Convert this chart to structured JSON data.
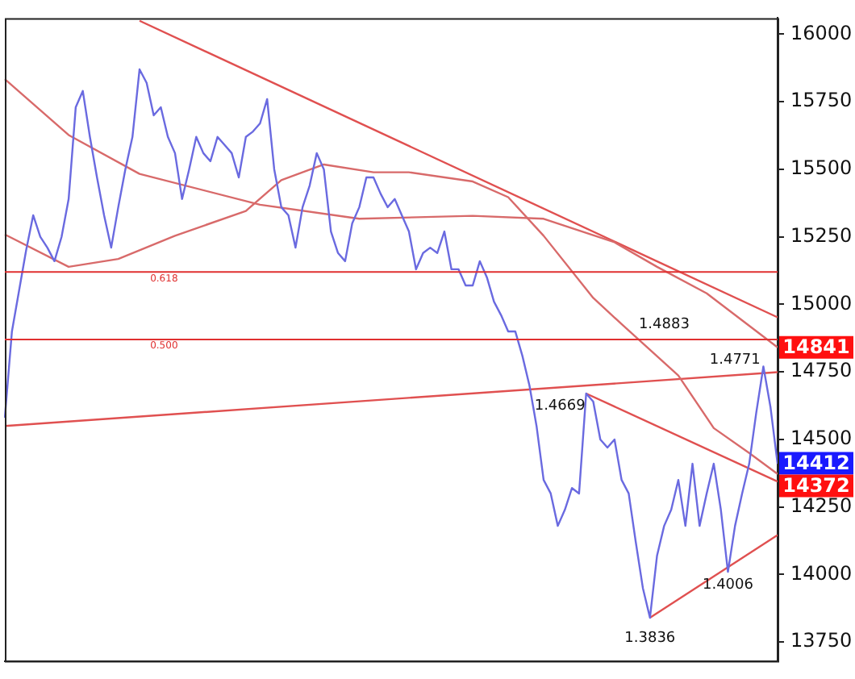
{
  "chart_data": {
    "type": "line",
    "categories": [
      null,
      null,
      null,
      null,
      null,
      null,
      null,
      null,
      null,
      null,
      null,
      null,
      null,
      null,
      null,
      null,
      null,
      null,
      null,
      null,
      null,
      null,
      null,
      null,
      null,
      null,
      null,
      null,
      null,
      null,
      null,
      null,
      null,
      null,
      null,
      null,
      null,
      null,
      null,
      null,
      null,
      null,
      null,
      null,
      null,
      null,
      null,
      null,
      null,
      null,
      null,
      null,
      null,
      null,
      null,
      null,
      null,
      null,
      null,
      null,
      null,
      null,
      null,
      null,
      null,
      null,
      null,
      null,
      null,
      null,
      null,
      null,
      null,
      null,
      null,
      null,
      null,
      null,
      null,
      null,
      null,
      null,
      null,
      null,
      null,
      null,
      null,
      null,
      null,
      null,
      null,
      null,
      null,
      null,
      null,
      null,
      null,
      null,
      null,
      null,
      null,
      null,
      null,
      null,
      null,
      null,
      null,
      null,
      null,
      null
    ],
    "series": [
      {
        "type": "line",
        "color": "#6a6ae0",
        "values": [
          14580,
          14900,
          15050,
          15200,
          15330,
          15250,
          15210,
          15160,
          15250,
          15390,
          15730,
          15790,
          15620,
          15470,
          15330,
          15210,
          15360,
          15500,
          15620,
          15870,
          15820,
          15700,
          15730,
          15620,
          15560,
          15390,
          15500,
          15620,
          15560,
          15530,
          15620,
          15590,
          15560,
          15470,
          15620,
          15640,
          15670,
          15760,
          15500,
          15360,
          15330,
          15210,
          15360,
          15440,
          15560,
          15500,
          15270,
          15190,
          15160,
          15300,
          15360,
          15470,
          15470,
          15410,
          15360,
          15390,
          15330,
          15270,
          15130,
          15190,
          15210,
          15190,
          15270,
          15130,
          15130,
          15070,
          15070,
          15160,
          15100,
          15010,
          14960,
          14900,
          14900,
          14810,
          14700,
          14550,
          14350,
          14300,
          14180,
          14240,
          14320,
          14300,
          14670,
          14640,
          14500,
          14470,
          14500,
          14350,
          14300,
          14120,
          13950,
          13840,
          14070,
          14180,
          14240,
          14350,
          14180,
          14410,
          14180,
          14300,
          14410,
          14240,
          14010,
          14180,
          14300,
          14410,
          14600,
          14770,
          14620,
          14410
        ]
      },
      {
        "type": "line",
        "color": "#d86a6a",
        "values": [
          15834,
          null,
          null,
          null,
          null,
          null,
          null,
          null,
          null,
          15627,
          null,
          null,
          null,
          null,
          null,
          null,
          null,
          null,
          null,
          15483,
          null,
          null,
          null,
          null,
          null,
          null,
          null,
          null,
          null,
          null,
          null,
          null,
          null,
          null,
          null,
          null,
          15369,
          null,
          null,
          null,
          null,
          null,
          null,
          null,
          null,
          null,
          null,
          null,
          null,
          null,
          15317,
          null,
          null,
          null,
          null,
          null,
          null,
          null,
          null,
          null,
          null,
          null,
          null,
          null,
          null,
          null,
          15328,
          null,
          null,
          null,
          null,
          null,
          null,
          null,
          null,
          null,
          15317,
          null,
          null,
          null,
          null,
          null,
          null,
          null,
          null,
          null,
          15230,
          null,
          null,
          null,
          null,
          null,
          15139,
          null,
          null,
          null,
          null,
          null,
          null,
          15041,
          null,
          null,
          null,
          null,
          null,
          null,
          null,
          null,
          null,
          14841
        ]
      },
      {
        "type": "line",
        "color": "#d86a6a",
        "values": [
          15259,
          null,
          null,
          null,
          null,
          null,
          null,
          null,
          null,
          15139,
          null,
          null,
          null,
          null,
          null,
          null,
          15168,
          null,
          null,
          null,
          null,
          null,
          null,
          null,
          15254,
          null,
          null,
          null,
          null,
          null,
          null,
          null,
          null,
          null,
          15346,
          null,
          null,
          null,
          null,
          15460,
          null,
          null,
          null,
          null,
          null,
          15518,
          null,
          null,
          null,
          null,
          null,
          null,
          15489,
          null,
          null,
          null,
          null,
          15489,
          null,
          null,
          null,
          null,
          null,
          null,
          null,
          null,
          15455,
          null,
          null,
          null,
          null,
          15397,
          null,
          null,
          null,
          null,
          15254,
          null,
          null,
          null,
          null,
          null,
          null,
          15024,
          null,
          null,
          null,
          14927,
          null,
          null,
          null,
          null,
          null,
          null,
          null,
          14737,
          null,
          null,
          null,
          null,
          14542,
          null,
          null,
          null,
          null,
          14450,
          null,
          null,
          null,
          14372
        ]
      },
      {
        "type": "line",
        "color": "#e05050",
        "values": [
          null,
          null,
          null,
          null,
          null,
          null,
          null,
          null,
          null,
          null,
          null,
          null,
          null,
          null,
          null,
          null,
          null,
          null,
          null,
          16050,
          null,
          null,
          null,
          null,
          null,
          null,
          null,
          null,
          null,
          null,
          null,
          null,
          null,
          null,
          null,
          null,
          null,
          null,
          null,
          null,
          null,
          null,
          null,
          null,
          null,
          null,
          null,
          null,
          null,
          null,
          null,
          null,
          null,
          null,
          null,
          null,
          null,
          null,
          null,
          null,
          null,
          null,
          null,
          null,
          null,
          null,
          null,
          null,
          null,
          null,
          null,
          null,
          null,
          null,
          null,
          null,
          null,
          null,
          null,
          null,
          null,
          null,
          null,
          null,
          null,
          null,
          null,
          null,
          null,
          null,
          null,
          null,
          null,
          null,
          null,
          null,
          null,
          null,
          null,
          null,
          null,
          null,
          null,
          null,
          null,
          null,
          null,
          null,
          null,
          14952
        ]
      },
      {
        "type": "line",
        "color": "#e05050",
        "values": [
          14550,
          null,
          null,
          null,
          null,
          null,
          null,
          null,
          null,
          null,
          null,
          null,
          null,
          null,
          null,
          null,
          null,
          null,
          null,
          null,
          null,
          null,
          null,
          null,
          null,
          null,
          null,
          null,
          null,
          null,
          null,
          null,
          null,
          null,
          null,
          null,
          null,
          null,
          null,
          null,
          null,
          null,
          null,
          null,
          null,
          null,
          null,
          null,
          null,
          null,
          null,
          null,
          null,
          null,
          null,
          null,
          null,
          null,
          null,
          null,
          null,
          null,
          null,
          null,
          null,
          null,
          null,
          null,
          null,
          null,
          null,
          null,
          null,
          null,
          null,
          null,
          null,
          null,
          null,
          null,
          null,
          null,
          null,
          null,
          null,
          null,
          null,
          null,
          null,
          null,
          null,
          null,
          null,
          null,
          null,
          null,
          null,
          null,
          null,
          null,
          null,
          null,
          null,
          null,
          null,
          null,
          null,
          null,
          null,
          14749
        ]
      },
      {
        "type": "line",
        "color": "#e05050",
        "values": [
          null,
          null,
          null,
          null,
          null,
          null,
          null,
          null,
          null,
          null,
          null,
          null,
          null,
          null,
          null,
          null,
          null,
          null,
          null,
          null,
          null,
          null,
          null,
          null,
          null,
          null,
          null,
          null,
          null,
          null,
          null,
          null,
          null,
          null,
          null,
          null,
          null,
          null,
          null,
          null,
          null,
          null,
          null,
          null,
          null,
          null,
          null,
          null,
          null,
          null,
          null,
          null,
          null,
          null,
          null,
          null,
          null,
          null,
          null,
          null,
          null,
          null,
          null,
          null,
          null,
          null,
          null,
          null,
          null,
          null,
          null,
          null,
          null,
          null,
          null,
          null,
          null,
          null,
          null,
          null,
          null,
          null,
          14670,
          null,
          null,
          null,
          null,
          null,
          null,
          null,
          null,
          null,
          null,
          null,
          null,
          null,
          null,
          null,
          null,
          null,
          null,
          null,
          null,
          null,
          null,
          null,
          null,
          null,
          null,
          14344
        ]
      },
      {
        "type": "line",
        "color": "#e05050",
        "values": [
          null,
          null,
          null,
          null,
          null,
          null,
          null,
          null,
          null,
          null,
          null,
          null,
          null,
          null,
          null,
          null,
          null,
          null,
          null,
          null,
          null,
          null,
          null,
          null,
          null,
          null,
          null,
          null,
          null,
          null,
          null,
          null,
          null,
          null,
          null,
          null,
          null,
          null,
          null,
          null,
          null,
          null,
          null,
          null,
          null,
          null,
          null,
          null,
          null,
          null,
          null,
          null,
          null,
          null,
          null,
          null,
          null,
          null,
          null,
          null,
          null,
          null,
          null,
          null,
          null,
          null,
          null,
          null,
          null,
          null,
          null,
          null,
          null,
          null,
          null,
          null,
          null,
          null,
          null,
          null,
          null,
          null,
          null,
          null,
          null,
          null,
          null,
          null,
          null,
          null,
          null,
          13840,
          null,
          null,
          null,
          null,
          null,
          null,
          null,
          null,
          null,
          null,
          null,
          null,
          null,
          null,
          null,
          null,
          null,
          14146
        ]
      }
    ],
    "ylim": [
      13680,
      16060
    ],
    "yticks": [
      13750,
      14000,
      14250,
      14500,
      14750,
      15000,
      15250,
      15500,
      15750,
      16000
    ],
    "tick_labels": "y",
    "grid": false,
    "legend": false,
    "marker": "none",
    "line_style": "solid",
    "ref_lines": [
      {
        "axis": "y",
        "value": 15120,
        "color": "#e03030"
      },
      {
        "axis": "y",
        "value": 14870,
        "color": "#e03030"
      }
    ],
    "annotations": [
      "0.618",
      "0.500",
      "1.4883",
      "1.4771",
      "1.4669",
      "1.4006",
      "1.3836",
      "14841",
      "14412",
      "14372"
    ]
  }
}
